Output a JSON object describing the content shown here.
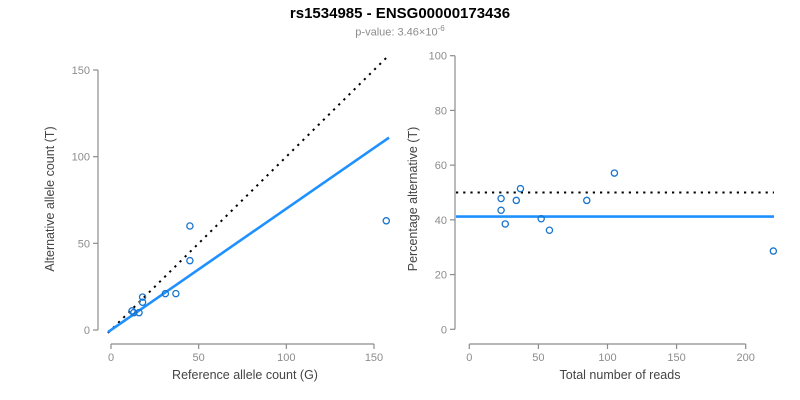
{
  "header": {
    "title": "rs1534985 - ENSG00000173436",
    "subtitle_prefix": "p-value: 3.46×10",
    "subtitle_exponent": "-6"
  },
  "colors": {
    "fit_line": "#1E90FF",
    "point_stroke": "#1874CD",
    "reference_line": "#000000",
    "axis": "#8C8C8C",
    "tick_label": "#8C8C8C",
    "axis_title": "#444444",
    "subtitle": "#8C8C8C"
  },
  "chart_data": [
    {
      "type": "scatter",
      "name": "allele-counts",
      "xlabel": "Reference allele count (G)",
      "ylabel": "Alternative allele count (T)",
      "xlim": [
        0,
        160
      ],
      "ylim": [
        0,
        158
      ],
      "xticks": [
        0,
        50,
        100,
        150
      ],
      "yticks": [
        0,
        50,
        100,
        150
      ],
      "grid": false,
      "points": [
        [
          12,
          11
        ],
        [
          13,
          10
        ],
        [
          16,
          10
        ],
        [
          18,
          16
        ],
        [
          18,
          19
        ],
        [
          31,
          21
        ],
        [
          37,
          21
        ],
        [
          45,
          40
        ],
        [
          45,
          60
        ],
        [
          157,
          63
        ]
      ],
      "lines": [
        {
          "name": "identity-line",
          "style": "dotted",
          "color": "#000000",
          "slope": 1,
          "intercept": 0
        },
        {
          "name": "fit-line",
          "style": "solid",
          "color": "#1E90FF",
          "slope": 0.7,
          "intercept": 0
        }
      ]
    },
    {
      "type": "scatter",
      "name": "percentage-vs-total",
      "xlabel": "Total number of reads",
      "ylabel": "Percentage alternative (T)",
      "xlim": [
        0,
        225
      ],
      "ylim": [
        0,
        100
      ],
      "xticks": [
        0,
        50,
        100,
        150,
        200
      ],
      "yticks": [
        0,
        20,
        40,
        60,
        80,
        100
      ],
      "grid": false,
      "points": [
        [
          23,
          47.8
        ],
        [
          23,
          43.5
        ],
        [
          26,
          38.5
        ],
        [
          34,
          47.1
        ],
        [
          37,
          51.4
        ],
        [
          52,
          40.4
        ],
        [
          58,
          36.2
        ],
        [
          85,
          47.1
        ],
        [
          105,
          57.1
        ],
        [
          220,
          28.6
        ]
      ],
      "lines": [
        {
          "name": "fifty-percent-line",
          "style": "dotted",
          "color": "#000000",
          "hline": 50
        },
        {
          "name": "fit-line",
          "style": "solid",
          "color": "#1E90FF",
          "hline": 41.2
        }
      ]
    }
  ]
}
